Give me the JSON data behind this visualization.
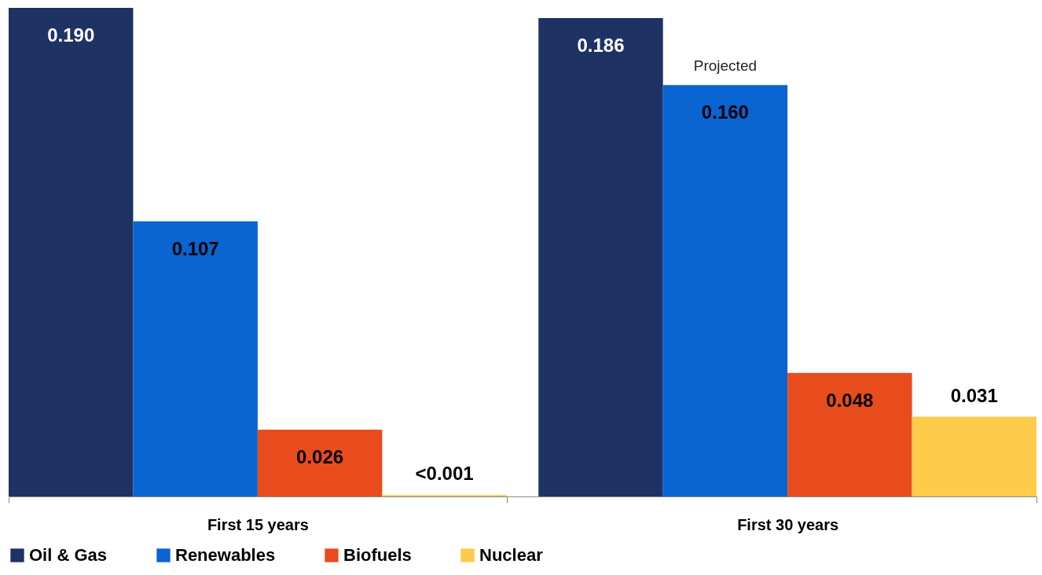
{
  "chart_data": {
    "type": "bar",
    "categories": [
      "First 15 years",
      "First 30 years"
    ],
    "series": [
      {
        "name": "Oil & Gas",
        "color": "#1f3264",
        "values": [
          0.19,
          0.186
        ],
        "value_labels": [
          "0.190",
          "0.186"
        ]
      },
      {
        "name": "Renewables",
        "color": "#0a64d2",
        "values": [
          0.107,
          0.16
        ],
        "value_labels": [
          "0.107",
          "0.160"
        ]
      },
      {
        "name": "Biofuels",
        "color": "#e84c1c",
        "values": [
          0.026,
          0.048
        ],
        "value_labels": [
          "0.026",
          "0.048"
        ]
      },
      {
        "name": "Nuclear",
        "color": "#fecb4a",
        "values": [
          0.0005,
          0.031
        ],
        "value_labels": [
          "<0.001",
          "0.031"
        ]
      }
    ],
    "annotations": [
      "Projected"
    ],
    "legend": "bottom",
    "grid": false
  }
}
